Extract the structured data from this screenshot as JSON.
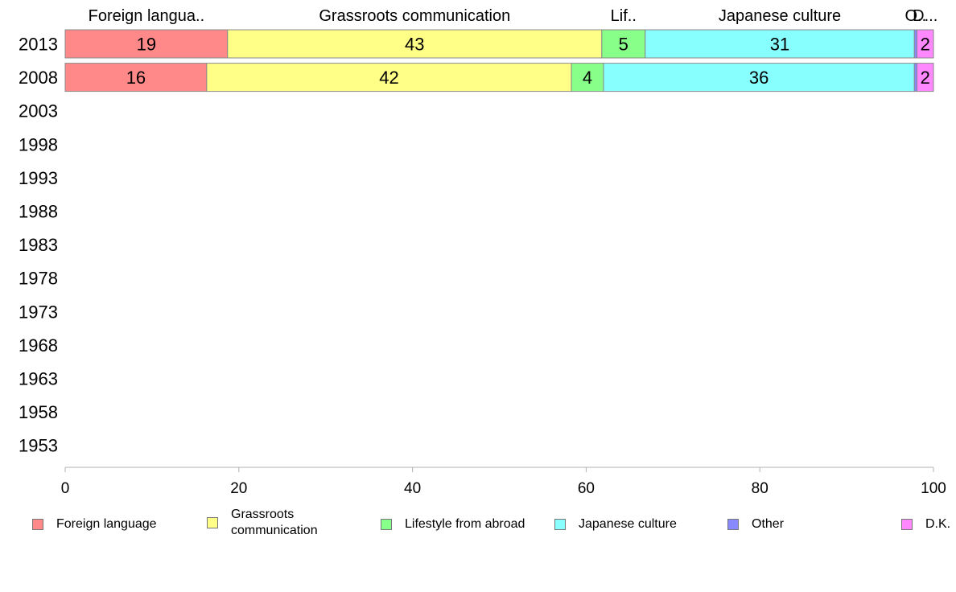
{
  "chart_data": {
    "type": "bar",
    "orientation": "horizontal",
    "stacked": true,
    "categories": [
      "2013",
      "2008",
      "2003",
      "1998",
      "1993",
      "1988",
      "1983",
      "1978",
      "1973",
      "1968",
      "1963",
      "1958",
      "1953"
    ],
    "series": [
      {
        "name": "Foreign language",
        "color": "#ff8888",
        "values": [
          18.7,
          16.3,
          null,
          null,
          null,
          null,
          null,
          null,
          null,
          null,
          null,
          null,
          null
        ],
        "labels": [
          "19",
          "16",
          "",
          "",
          "",
          "",
          "",
          "",
          "",
          "",
          "",
          "",
          ""
        ]
      },
      {
        "name": "Grassroots communication",
        "color": "#ffff88",
        "values": [
          43.1,
          42.0,
          null,
          null,
          null,
          null,
          null,
          null,
          null,
          null,
          null,
          null,
          null
        ],
        "labels": [
          "43",
          "42",
          "",
          "",
          "",
          "",
          "",
          "",
          "",
          "",
          "",
          "",
          ""
        ]
      },
      {
        "name": "Lifestyle from abroad",
        "color": "#88ff88",
        "values": [
          5.0,
          3.7,
          null,
          null,
          null,
          null,
          null,
          null,
          null,
          null,
          null,
          null,
          null
        ],
        "labels": [
          "5",
          "4",
          "",
          "",
          "",
          "",
          "",
          "",
          "",
          "",
          "",
          "",
          ""
        ]
      },
      {
        "name": "Japanese culture",
        "color": "#88ffff",
        "values": [
          31.0,
          35.8,
          null,
          null,
          null,
          null,
          null,
          null,
          null,
          null,
          null,
          null,
          null
        ],
        "labels": [
          "31",
          "36",
          "",
          "",
          "",
          "",
          "",
          "",
          "",
          "",
          "",
          "",
          ""
        ]
      },
      {
        "name": "Other",
        "color": "#8888ff",
        "values": [
          0.3,
          0.3,
          null,
          null,
          null,
          null,
          null,
          null,
          null,
          null,
          null,
          null,
          null
        ],
        "labels": [
          "",
          "",
          "",
          "",
          "",
          "",
          "",
          "",
          "",
          "",
          "",
          "",
          ""
        ]
      },
      {
        "name": "D.K.",
        "color": "#ff88ff",
        "values": [
          1.9,
          1.9,
          null,
          null,
          null,
          null,
          null,
          null,
          null,
          null,
          null,
          null,
          null
        ],
        "labels": [
          "2",
          "2",
          "",
          "",
          "",
          "",
          "",
          "",
          "",
          "",
          "",
          "",
          ""
        ]
      }
    ],
    "top_labels": [
      "Foreign langua..",
      "Grassroots communication",
      "Lif..",
      "Japanese culture",
      "O..",
      "D..."
    ],
    "xlim": [
      0,
      100
    ],
    "xticks": [
      0,
      20,
      40,
      60,
      80,
      100
    ],
    "grid": false,
    "legend_position": "bottom",
    "legend": [
      "Foreign language",
      "Grassroots\ncommunication",
      "Lifestyle from abroad",
      "Japanese culture",
      "Other",
      "D.K."
    ]
  }
}
